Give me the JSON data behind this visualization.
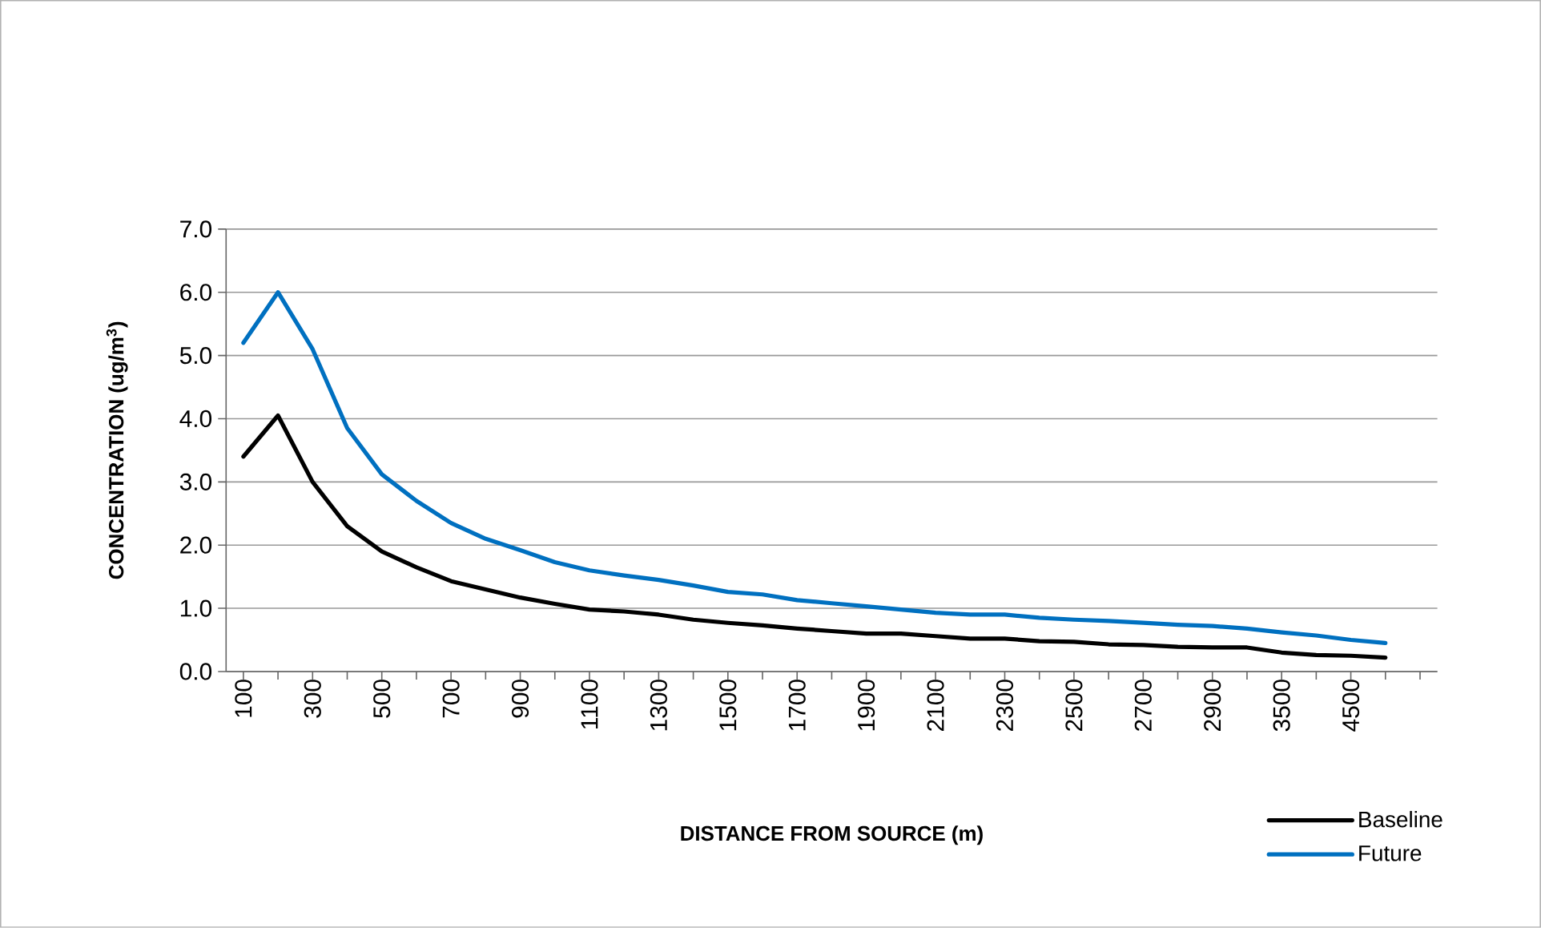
{
  "chart_data": {
    "type": "line",
    "xlabel": "DISTANCE FROM SOURCE (m)",
    "ylabel": "CONCENTRATION (ug/m$^{3}$)",
    "categories": [
      "100",
      null,
      "300",
      null,
      "500",
      null,
      "700",
      null,
      "900",
      null,
      "1100",
      null,
      "1300",
      null,
      "1500",
      null,
      "1700",
      null,
      "1900",
      null,
      "2100",
      null,
      "2300",
      null,
      "2500",
      null,
      "2700",
      null,
      "2900",
      null,
      "3500",
      null,
      "4500",
      null
    ],
    "series": [
      {
        "name": "Baseline",
        "color": "#000000",
        "values": [
          3.4,
          4.05,
          3.0,
          2.3,
          1.9,
          1.65,
          1.43,
          1.3,
          1.17,
          1.07,
          0.98,
          0.95,
          0.9,
          0.82,
          0.77,
          0.73,
          0.68,
          0.64,
          0.6,
          0.6,
          0.56,
          0.52,
          0.52,
          0.48,
          0.47,
          0.43,
          0.42,
          0.39,
          0.38,
          0.38,
          0.3,
          0.26,
          0.25,
          0.22
        ]
      },
      {
        "name": "Future",
        "color": "#0070c0",
        "values": [
          5.2,
          6.0,
          5.1,
          3.85,
          3.12,
          2.7,
          2.35,
          2.1,
          1.92,
          1.73,
          1.6,
          1.52,
          1.45,
          1.36,
          1.26,
          1.22,
          1.13,
          1.08,
          1.03,
          0.98,
          0.93,
          0.9,
          0.9,
          0.85,
          0.82,
          0.8,
          0.77,
          0.74,
          0.72,
          0.68,
          0.62,
          0.57,
          0.5,
          0.45
        ]
      }
    ],
    "ylim": [
      0,
      7
    ],
    "yticks": [
      {
        "value": 0,
        "label": "0.0"
      },
      {
        "value": 1,
        "label": "1.0"
      },
      {
        "value": 2,
        "label": "2.0"
      },
      {
        "value": 3,
        "label": "3.0"
      },
      {
        "value": 4,
        "label": "4.0"
      },
      {
        "value": 5,
        "label": "5.0"
      },
      {
        "value": 6,
        "label": "6.0"
      },
      {
        "value": 7,
        "label": "7.0"
      }
    ],
    "grid": "y",
    "legend": "bottom right",
    "marker": "none",
    "line_style": "solid"
  }
}
